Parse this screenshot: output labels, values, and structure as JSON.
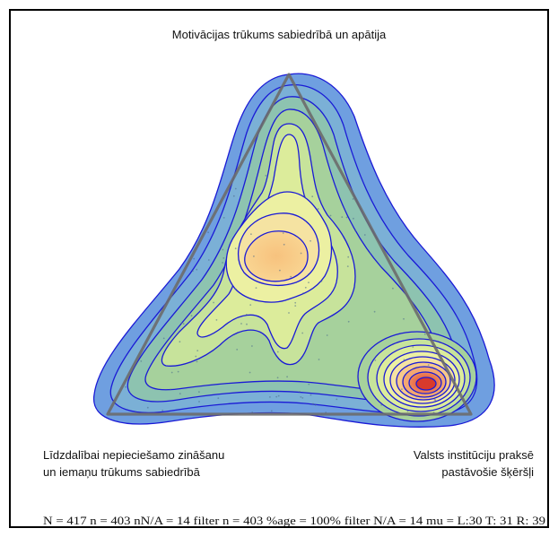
{
  "chart_data": {
    "type": "ternary-density",
    "title": "",
    "vertices": {
      "top": "Motivācijas trūkums sabiedrībā un apātija",
      "left_line1": "Līdzdalībai nepieciešamo zināšanu",
      "left_line2": "un iemaņu trūkums sabiedrībā",
      "right_line1": "Valsts institūciju praksē",
      "right_line2": "pastāvošie šķēršļi"
    },
    "density_peaks": [
      {
        "name": "center-peak",
        "L": 30,
        "T": 55,
        "R": 15,
        "level": 0.55
      },
      {
        "name": "right-peak",
        "L": 10,
        "T": 12,
        "R": 78,
        "level": 1.0
      }
    ],
    "stats_line": "N = 417 n = 403  nN/A = 14  filter n = 403  %age = 100%  filter N/A = 14 mu = L:30 T: 31 R: 39",
    "mean": {
      "L": 30,
      "T": 31,
      "R": 39
    },
    "colors": {
      "outer": "#6f9fe0",
      "contour_line": "#1a1ad6",
      "triangle": "#777777",
      "low": "#8fc4a8",
      "mid": "#e6ef9a",
      "high": "#f7c27e",
      "peak": "#e0533a"
    }
  }
}
